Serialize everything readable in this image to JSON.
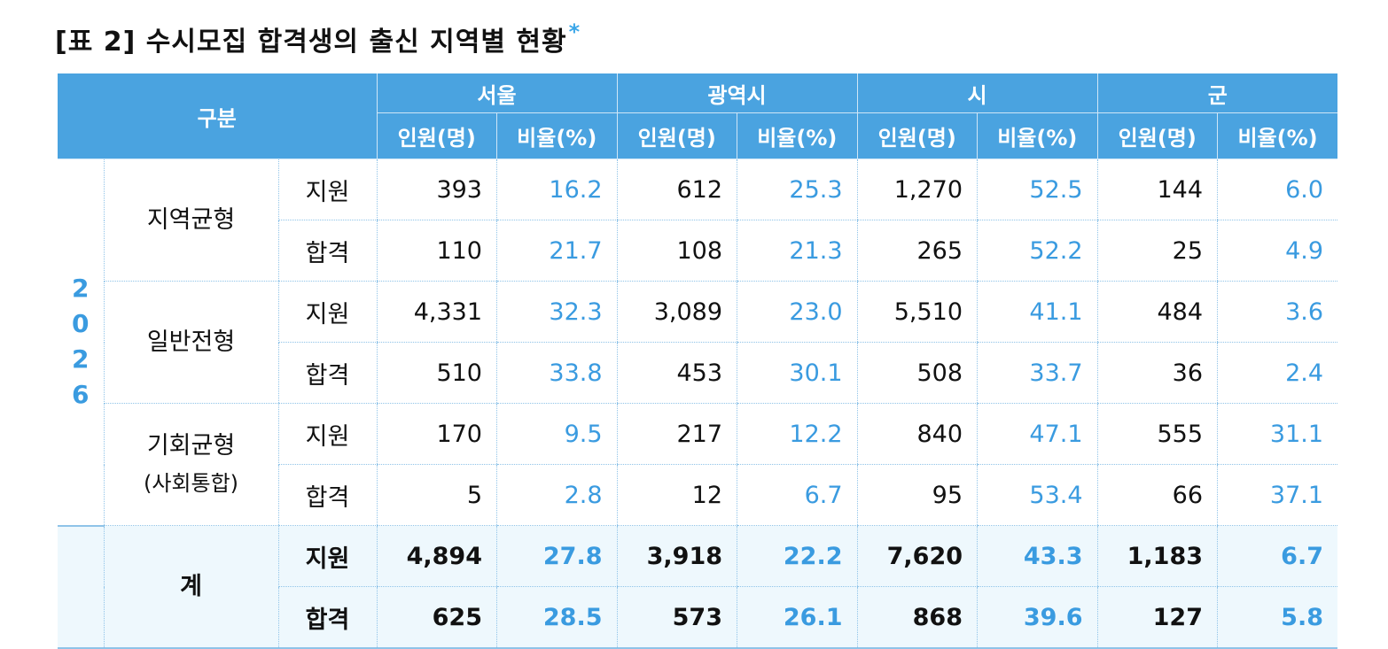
{
  "title": "[표 2] 수시모집 합격생의 출신 지역별 현황",
  "title_mark": "*",
  "header": {
    "gubun": "구분",
    "regions": [
      "서울",
      "광역시",
      "시",
      "군"
    ],
    "count_label": "인원(명)",
    "ratio_label": "비율(%)"
  },
  "year_chars": [
    "2",
    "0",
    "2",
    "6"
  ],
  "groups": [
    {
      "name": "지역균형",
      "sub": "",
      "rows": [
        {
          "kind": "지원",
          "values": [
            "393",
            "16.2",
            "612",
            "25.3",
            "1,270",
            "52.5",
            "144",
            "6.0"
          ]
        },
        {
          "kind": "합격",
          "values": [
            "110",
            "21.7",
            "108",
            "21.3",
            "265",
            "52.2",
            "25",
            "4.9"
          ]
        }
      ]
    },
    {
      "name": "일반전형",
      "sub": "",
      "rows": [
        {
          "kind": "지원",
          "values": [
            "4,331",
            "32.3",
            "3,089",
            "23.0",
            "5,510",
            "41.1",
            "484",
            "3.6"
          ]
        },
        {
          "kind": "합격",
          "values": [
            "510",
            "33.8",
            "453",
            "30.1",
            "508",
            "33.7",
            "36",
            "2.4"
          ]
        }
      ]
    },
    {
      "name": "기회균형",
      "sub": "(사회통합)",
      "rows": [
        {
          "kind": "지원",
          "values": [
            "170",
            "9.5",
            "217",
            "12.2",
            "840",
            "47.1",
            "555",
            "31.1"
          ]
        },
        {
          "kind": "합격",
          "values": [
            "5",
            "2.8",
            "12",
            "6.7",
            "95",
            "53.4",
            "66",
            "37.1"
          ]
        }
      ]
    },
    {
      "name": "계",
      "sub": "",
      "rows": [
        {
          "kind": "지원",
          "values": [
            "4,894",
            "27.8",
            "3,918",
            "22.2",
            "7,620",
            "43.3",
            "1,183",
            "6.7"
          ]
        },
        {
          "kind": "합격",
          "values": [
            "625",
            "28.5",
            "573",
            "26.1",
            "868",
            "39.6",
            "127",
            "5.8"
          ]
        }
      ]
    }
  ]
}
